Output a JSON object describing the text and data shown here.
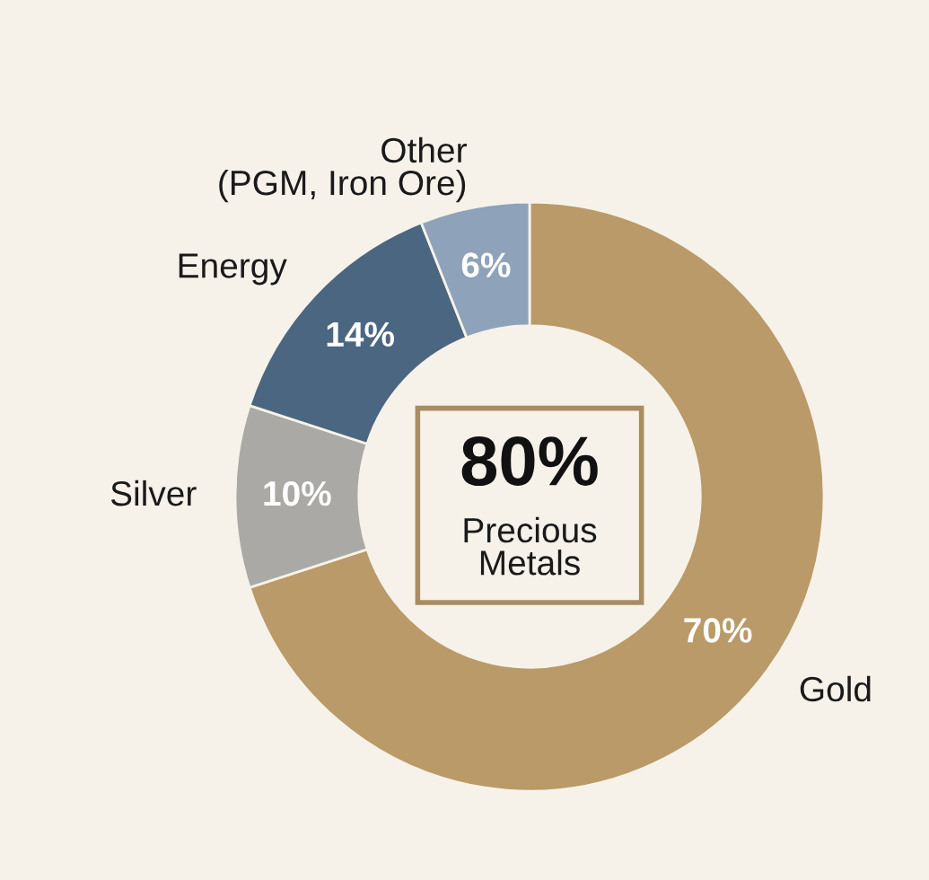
{
  "chart_data": {
    "type": "donut",
    "categories": [
      "Gold",
      "Silver",
      "Energy",
      "Other\n(PGM, Iron Ore)"
    ],
    "values": [
      70,
      10,
      14,
      6
    ],
    "colors": [
      "#b99a68",
      "#aaa9a5",
      "#4b6681",
      "#8ea3ba"
    ],
    "value_labels": [
      "70%",
      "10%",
      "14%",
      "6%"
    ],
    "annotations": [
      "80%",
      "Precious\nMetals"
    ]
  }
}
